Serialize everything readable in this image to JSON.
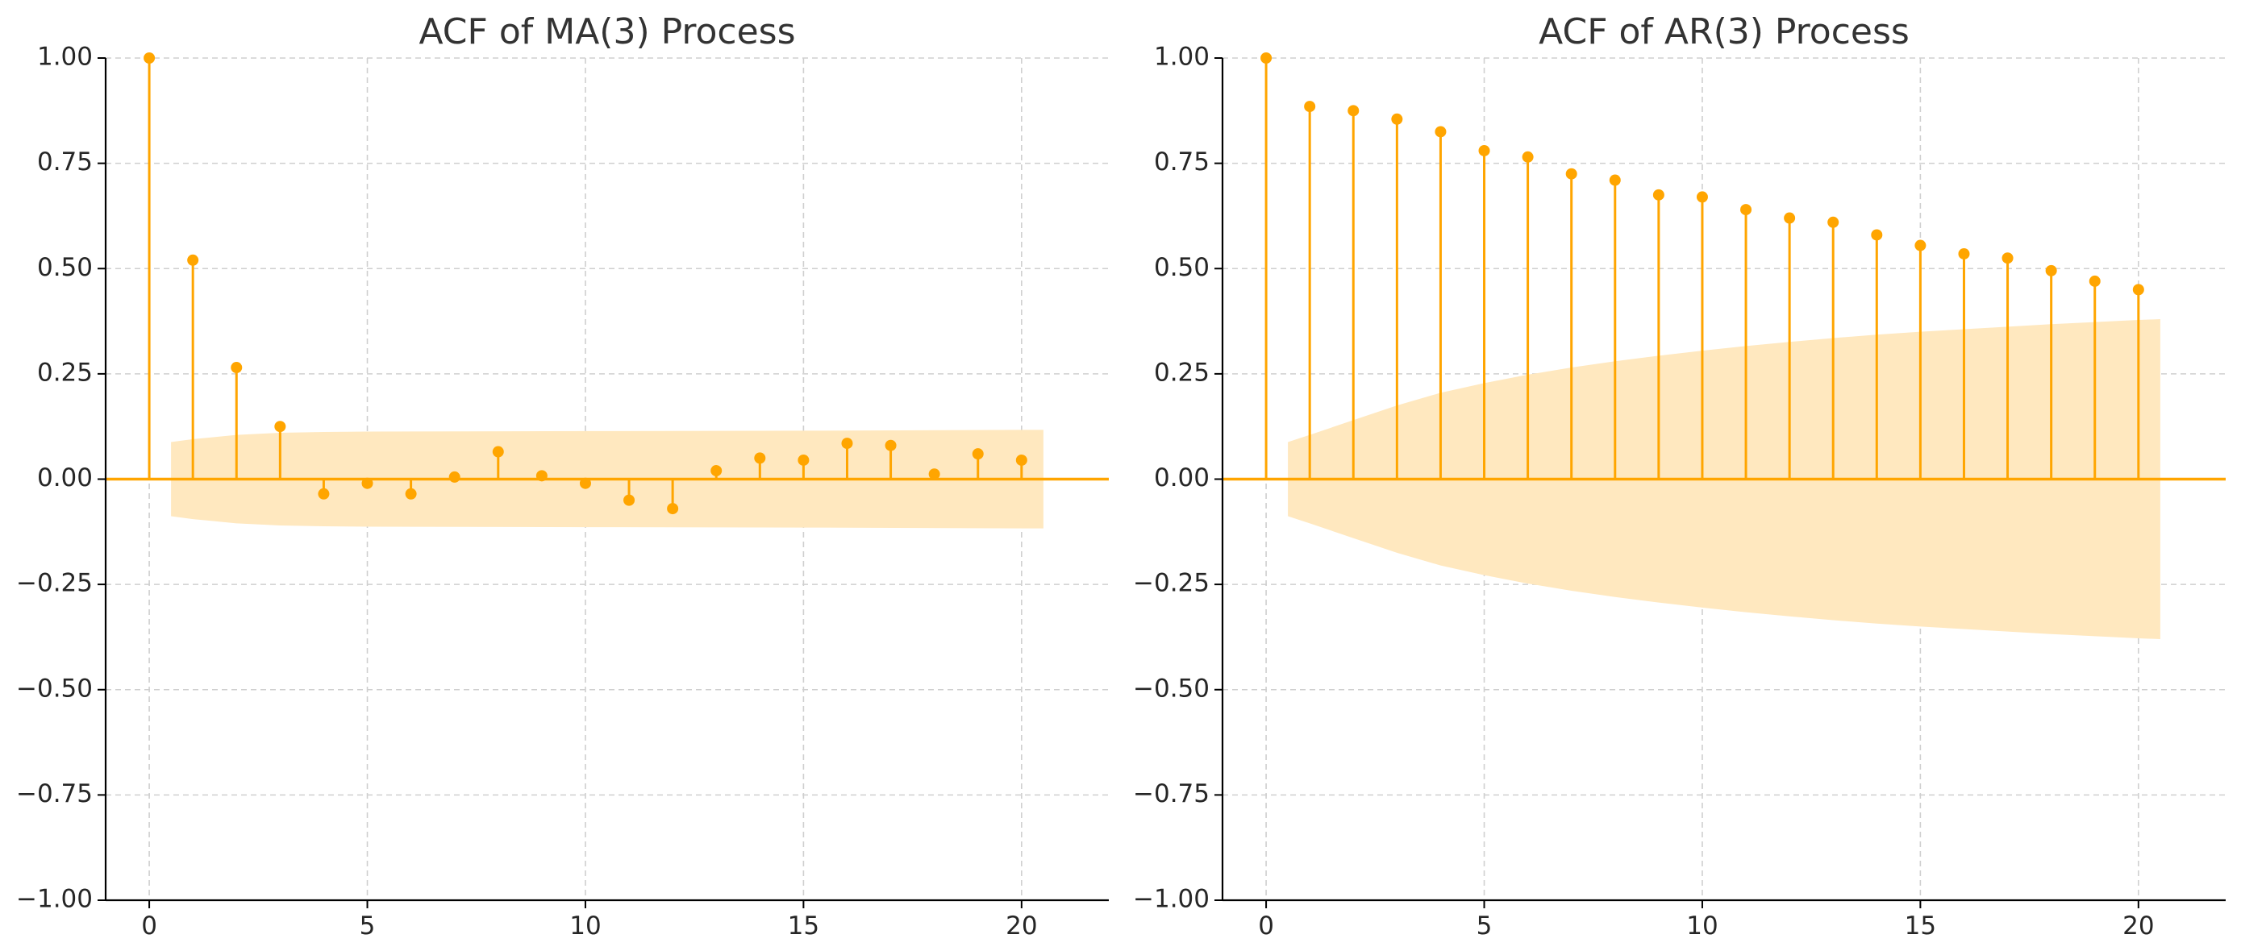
{
  "chart_data": [
    {
      "type": "stem",
      "title": "ACF of MA(3) Process",
      "xlabel": "",
      "ylabel": "",
      "xlim": [
        -1,
        22
      ],
      "ylim": [
        -1.0,
        1.0
      ],
      "xticks": [
        0,
        5,
        10,
        15,
        20
      ],
      "yticks": [
        -1.0,
        -0.75,
        -0.5,
        -0.25,
        0.0,
        0.25,
        0.5,
        0.75,
        1.0
      ],
      "grid": true,
      "lags": [
        0,
        1,
        2,
        3,
        4,
        5,
        6,
        7,
        8,
        9,
        10,
        11,
        12,
        13,
        14,
        15,
        16,
        17,
        18,
        19,
        20
      ],
      "values": [
        1.0,
        0.52,
        0.265,
        0.125,
        -0.035,
        -0.01,
        -0.035,
        0.005,
        0.065,
        0.008,
        -0.01,
        -0.05,
        -0.07,
        0.02,
        0.05,
        0.045,
        0.085,
        0.08,
        0.012,
        0.06,
        0.045
      ],
      "confidence_band": {
        "lags": [
          0.5,
          1,
          2,
          3,
          4,
          5,
          10,
          15,
          20,
          20.5
        ],
        "upper": [
          0.088,
          0.095,
          0.105,
          0.11,
          0.112,
          0.113,
          0.114,
          0.115,
          0.117,
          0.117
        ]
      },
      "colors": {
        "stem": "#FFA500",
        "band": "#FFE8BF"
      }
    },
    {
      "type": "stem",
      "title": "ACF of AR(3) Process",
      "xlabel": "",
      "ylabel": "",
      "xlim": [
        -1,
        22
      ],
      "ylim": [
        -1.0,
        1.0
      ],
      "xticks": [
        0,
        5,
        10,
        15,
        20
      ],
      "yticks": [
        -1.0,
        -0.75,
        -0.5,
        -0.25,
        0.0,
        0.25,
        0.5,
        0.75,
        1.0
      ],
      "grid": true,
      "lags": [
        0,
        1,
        2,
        3,
        4,
        5,
        6,
        7,
        8,
        9,
        10,
        11,
        12,
        13,
        14,
        15,
        16,
        17,
        18,
        19,
        20
      ],
      "values": [
        1.0,
        0.885,
        0.875,
        0.855,
        0.825,
        0.78,
        0.765,
        0.725,
        0.71,
        0.675,
        0.67,
        0.64,
        0.62,
        0.61,
        0.58,
        0.555,
        0.535,
        0.525,
        0.495,
        0.47,
        0.45
      ],
      "confidence_band": {
        "lags": [
          0.5,
          1,
          2,
          3,
          4,
          5,
          6,
          7,
          8,
          9,
          10,
          11,
          12,
          13,
          14,
          15,
          16,
          17,
          18,
          19,
          20,
          20.5
        ],
        "upper": [
          0.088,
          0.105,
          0.14,
          0.175,
          0.205,
          0.228,
          0.248,
          0.265,
          0.28,
          0.293,
          0.305,
          0.316,
          0.326,
          0.335,
          0.343,
          0.35,
          0.356,
          0.362,
          0.368,
          0.373,
          0.378,
          0.38
        ]
      },
      "colors": {
        "stem": "#FFA500",
        "band": "#FFE8BF"
      }
    }
  ]
}
